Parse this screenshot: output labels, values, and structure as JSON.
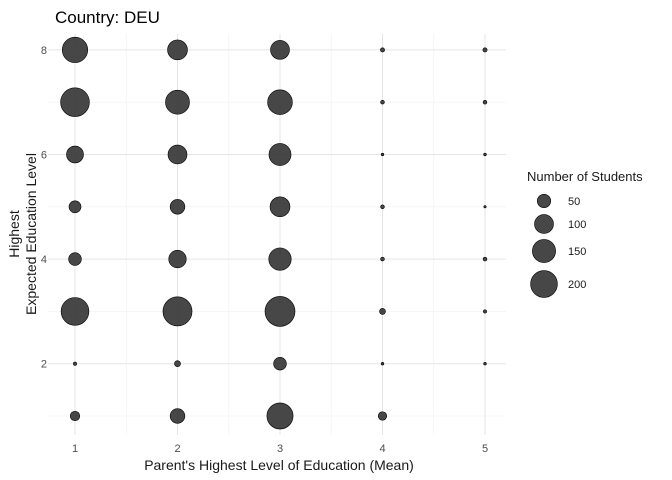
{
  "chart_data": {
    "type": "scatter",
    "title": "Country: DEU",
    "xlabel": "Parent's Highest Level of Education (Mean)",
    "ylabel_lines": [
      "Highest",
      "Expected Education Level"
    ],
    "x_ticks": [
      "1",
      "2",
      "3",
      "4",
      "5"
    ],
    "y_ticks": [
      "2",
      "4",
      "6",
      "8"
    ],
    "xlim": [
      0.5,
      5.2
    ],
    "ylim": [
      0.5,
      8.3
    ],
    "grid": true,
    "legend": {
      "title": "Number of Students",
      "placement": "right",
      "entries": [
        {
          "label": "50",
          "value": 50
        },
        {
          "label": "100",
          "value": 100
        },
        {
          "label": "150",
          "value": 150
        },
        {
          "label": "200",
          "value": 200
        }
      ]
    },
    "points": [
      {
        "x": 1,
        "y": 8,
        "n": 180
      },
      {
        "x": 2,
        "y": 8,
        "n": 110
      },
      {
        "x": 3,
        "y": 8,
        "n": 100
      },
      {
        "x": 4,
        "y": 8,
        "n": 5
      },
      {
        "x": 5,
        "y": 8,
        "n": 5
      },
      {
        "x": 1,
        "y": 7,
        "n": 230
      },
      {
        "x": 2,
        "y": 7,
        "n": 160
      },
      {
        "x": 3,
        "y": 7,
        "n": 170
      },
      {
        "x": 4,
        "y": 7,
        "n": 4
      },
      {
        "x": 5,
        "y": 7,
        "n": 4
      },
      {
        "x": 1,
        "y": 6,
        "n": 80
      },
      {
        "x": 2,
        "y": 6,
        "n": 100
      },
      {
        "x": 3,
        "y": 6,
        "n": 135
      },
      {
        "x": 4,
        "y": 6,
        "n": 2
      },
      {
        "x": 5,
        "y": 6,
        "n": 2
      },
      {
        "x": 1,
        "y": 5,
        "n": 40
      },
      {
        "x": 2,
        "y": 5,
        "n": 60
      },
      {
        "x": 3,
        "y": 5,
        "n": 110
      },
      {
        "x": 4,
        "y": 5,
        "n": 4
      },
      {
        "x": 5,
        "y": 5,
        "n": 1
      },
      {
        "x": 1,
        "y": 4,
        "n": 45
      },
      {
        "x": 2,
        "y": 4,
        "n": 85
      },
      {
        "x": 3,
        "y": 4,
        "n": 140
      },
      {
        "x": 4,
        "y": 4,
        "n": 4
      },
      {
        "x": 5,
        "y": 4,
        "n": 4
      },
      {
        "x": 1,
        "y": 3,
        "n": 215
      },
      {
        "x": 2,
        "y": 3,
        "n": 235
      },
      {
        "x": 3,
        "y": 3,
        "n": 250
      },
      {
        "x": 4,
        "y": 3,
        "n": 10
      },
      {
        "x": 5,
        "y": 3,
        "n": 3
      },
      {
        "x": 1,
        "y": 2,
        "n": 3
      },
      {
        "x": 2,
        "y": 2,
        "n": 10
      },
      {
        "x": 3,
        "y": 2,
        "n": 45
      },
      {
        "x": 4,
        "y": 2,
        "n": 2
      },
      {
        "x": 5,
        "y": 2,
        "n": 2
      },
      {
        "x": 1,
        "y": 1,
        "n": 25
      },
      {
        "x": 2,
        "y": 1,
        "n": 60
      },
      {
        "x": 3,
        "y": 1,
        "n": 190
      },
      {
        "x": 4,
        "y": 1,
        "n": 20
      },
      {
        "x": 5,
        "y": 1,
        "n": 0
      }
    ],
    "colors": {
      "point_fill": "#333333",
      "point_stroke": "#000000",
      "grid_major": "#e5e5e5",
      "grid_minor": "#f0f0f0"
    }
  }
}
